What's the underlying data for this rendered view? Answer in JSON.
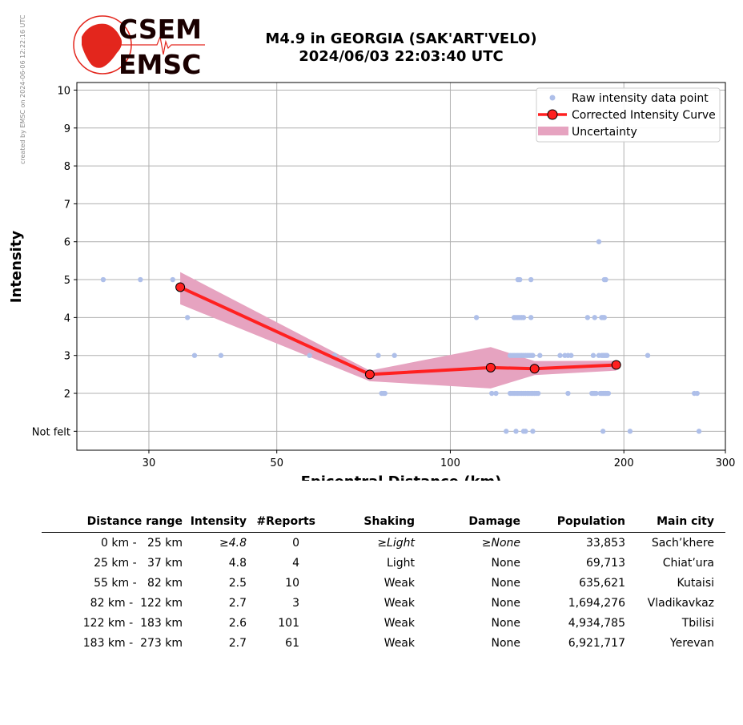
{
  "credit": "created by EMSC on 2024-06-06 12:22:16 UTC",
  "logo": {
    "top_text": "CSEM",
    "bottom_text": "EMSC",
    "color": "#e3261d"
  },
  "title": {
    "line1": "M4.9 in GEORGIA (SAK'ART'VELO)",
    "line2": "2024/06/03 22:03:40 UTC"
  },
  "chart_data": {
    "type": "scatter",
    "xlabel": "Epicentral Distance (km)",
    "ylabel": "Intensity",
    "x_scale": "log",
    "xlim": [
      22.5,
      300
    ],
    "ylim": [
      0.5,
      10.2
    ],
    "x_ticks": [
      30,
      50,
      100,
      200,
      300
    ],
    "y_ticks": [
      {
        "value": 1,
        "label": "Not felt"
      },
      {
        "value": 2,
        "label": "2"
      },
      {
        "value": 3,
        "label": "3"
      },
      {
        "value": 4,
        "label": "4"
      },
      {
        "value": 5,
        "label": "5"
      },
      {
        "value": 6,
        "label": "6"
      },
      {
        "value": 7,
        "label": "7"
      },
      {
        "value": 8,
        "label": "8"
      },
      {
        "value": 9,
        "label": "9"
      },
      {
        "value": 10,
        "label": "10"
      }
    ],
    "grid": true,
    "legend_position": "top-right",
    "colors": {
      "raw": "#aebfe9",
      "curve": "#ff2020",
      "marker_edge": "#000000",
      "band": "#e6a3c0"
    },
    "legend": {
      "raw": "Raw intensity data point",
      "curve": "Corrected Intensity Curve",
      "band": "Uncertainty"
    },
    "raw_points": [
      [
        25,
        5
      ],
      [
        29,
        5
      ],
      [
        33,
        5
      ],
      [
        35,
        4
      ],
      [
        36,
        3
      ],
      [
        40,
        3
      ],
      [
        57,
        3
      ],
      [
        63,
        3
      ],
      [
        75,
        3
      ],
      [
        76,
        2
      ],
      [
        76.5,
        2
      ],
      [
        77,
        2
      ],
      [
        80,
        3
      ],
      [
        111,
        4
      ],
      [
        118,
        2
      ],
      [
        120,
        2
      ],
      [
        125,
        1
      ],
      [
        127,
        2
      ],
      [
        128,
        2
      ],
      [
        129,
        2
      ],
      [
        130,
        2
      ],
      [
        131,
        2
      ],
      [
        132,
        2
      ],
      [
        133,
        2
      ],
      [
        134,
        2
      ],
      [
        135,
        2
      ],
      [
        136,
        2
      ],
      [
        137,
        2
      ],
      [
        138,
        2
      ],
      [
        139,
        2
      ],
      [
        140,
        2
      ],
      [
        141,
        2
      ],
      [
        142,
        2
      ],
      [
        127,
        3
      ],
      [
        128,
        3
      ],
      [
        129,
        3
      ],
      [
        130,
        3
      ],
      [
        131,
        3
      ],
      [
        132,
        3
      ],
      [
        133,
        3
      ],
      [
        134,
        3
      ],
      [
        135,
        3
      ],
      [
        136,
        3
      ],
      [
        137,
        3
      ],
      [
        138,
        3
      ],
      [
        139,
        3
      ],
      [
        143,
        3
      ],
      [
        129,
        4
      ],
      [
        130,
        4
      ],
      [
        131,
        4
      ],
      [
        132,
        4
      ],
      [
        133,
        4
      ],
      [
        134,
        4
      ],
      [
        138,
        4
      ],
      [
        131,
        5
      ],
      [
        132,
        5
      ],
      [
        138,
        5
      ],
      [
        130,
        1
      ],
      [
        134,
        1
      ],
      [
        135,
        1
      ],
      [
        139,
        1
      ],
      [
        155,
        3
      ],
      [
        158,
        3
      ],
      [
        160,
        3
      ],
      [
        162,
        3
      ],
      [
        160,
        2
      ],
      [
        173,
        4
      ],
      [
        177,
        3
      ],
      [
        178,
        4
      ],
      [
        176,
        2
      ],
      [
        177,
        2
      ],
      [
        178,
        2
      ],
      [
        179,
        2
      ],
      [
        181,
        3
      ],
      [
        183,
        3
      ],
      [
        184,
        3
      ],
      [
        185,
        3
      ],
      [
        186,
        3
      ],
      [
        187,
        3
      ],
      [
        182,
        2
      ],
      [
        183,
        2
      ],
      [
        184,
        2
      ],
      [
        185,
        2
      ],
      [
        186,
        2
      ],
      [
        187,
        2
      ],
      [
        188,
        2
      ],
      [
        181,
        6
      ],
      [
        183,
        4
      ],
      [
        184,
        4
      ],
      [
        185,
        4
      ],
      [
        185,
        5
      ],
      [
        186,
        5
      ],
      [
        184,
        1
      ],
      [
        205,
        1
      ],
      [
        220,
        3
      ],
      [
        265,
        2
      ],
      [
        268,
        2
      ],
      [
        270,
        1
      ]
    ],
    "curve": {
      "distances_km": [
        34,
        72.5,
        117.5,
        140,
        194
      ],
      "intensities": [
        4.8,
        2.5,
        2.68,
        2.65,
        2.75
      ],
      "upper": [
        5.2,
        2.6,
        3.22,
        2.85,
        2.86
      ],
      "lower": [
        4.35,
        2.32,
        2.13,
        2.48,
        2.6
      ]
    }
  },
  "table": {
    "headers": [
      "Distance range",
      "Intensity",
      "#Reports",
      "Shaking",
      "Damage",
      "Population",
      "Main city"
    ],
    "rows": [
      {
        "range": "0 km -   25 km",
        "intensity": "≥4.8",
        "reports": "0",
        "shaking": "≥Light",
        "damage": "≥None",
        "population": "33,853",
        "city": "Sach’khere"
      },
      {
        "range": "25 km -   37 km",
        "intensity": "4.8",
        "reports": "4",
        "shaking": "Light",
        "damage": "None",
        "population": "69,713",
        "city": "Chiat’ura"
      },
      {
        "range": "55 km -   82 km",
        "intensity": "2.5",
        "reports": "10",
        "shaking": "Weak",
        "damage": "None",
        "population": "635,621",
        "city": "Kutaisi"
      },
      {
        "range": "82 km -  122 km",
        "intensity": "2.7",
        "reports": "3",
        "shaking": "Weak",
        "damage": "None",
        "population": "1,694,276",
        "city": "Vladikavkaz"
      },
      {
        "range": "122 km -  183 km",
        "intensity": "2.6",
        "reports": "101",
        "shaking": "Weak",
        "damage": "None",
        "population": "4,934,785",
        "city": "Tbilisi"
      },
      {
        "range": "183 km -  273 km",
        "intensity": "2.7",
        "reports": "61",
        "shaking": "Weak",
        "damage": "None",
        "population": "6,921,717",
        "city": "Yerevan"
      }
    ]
  }
}
